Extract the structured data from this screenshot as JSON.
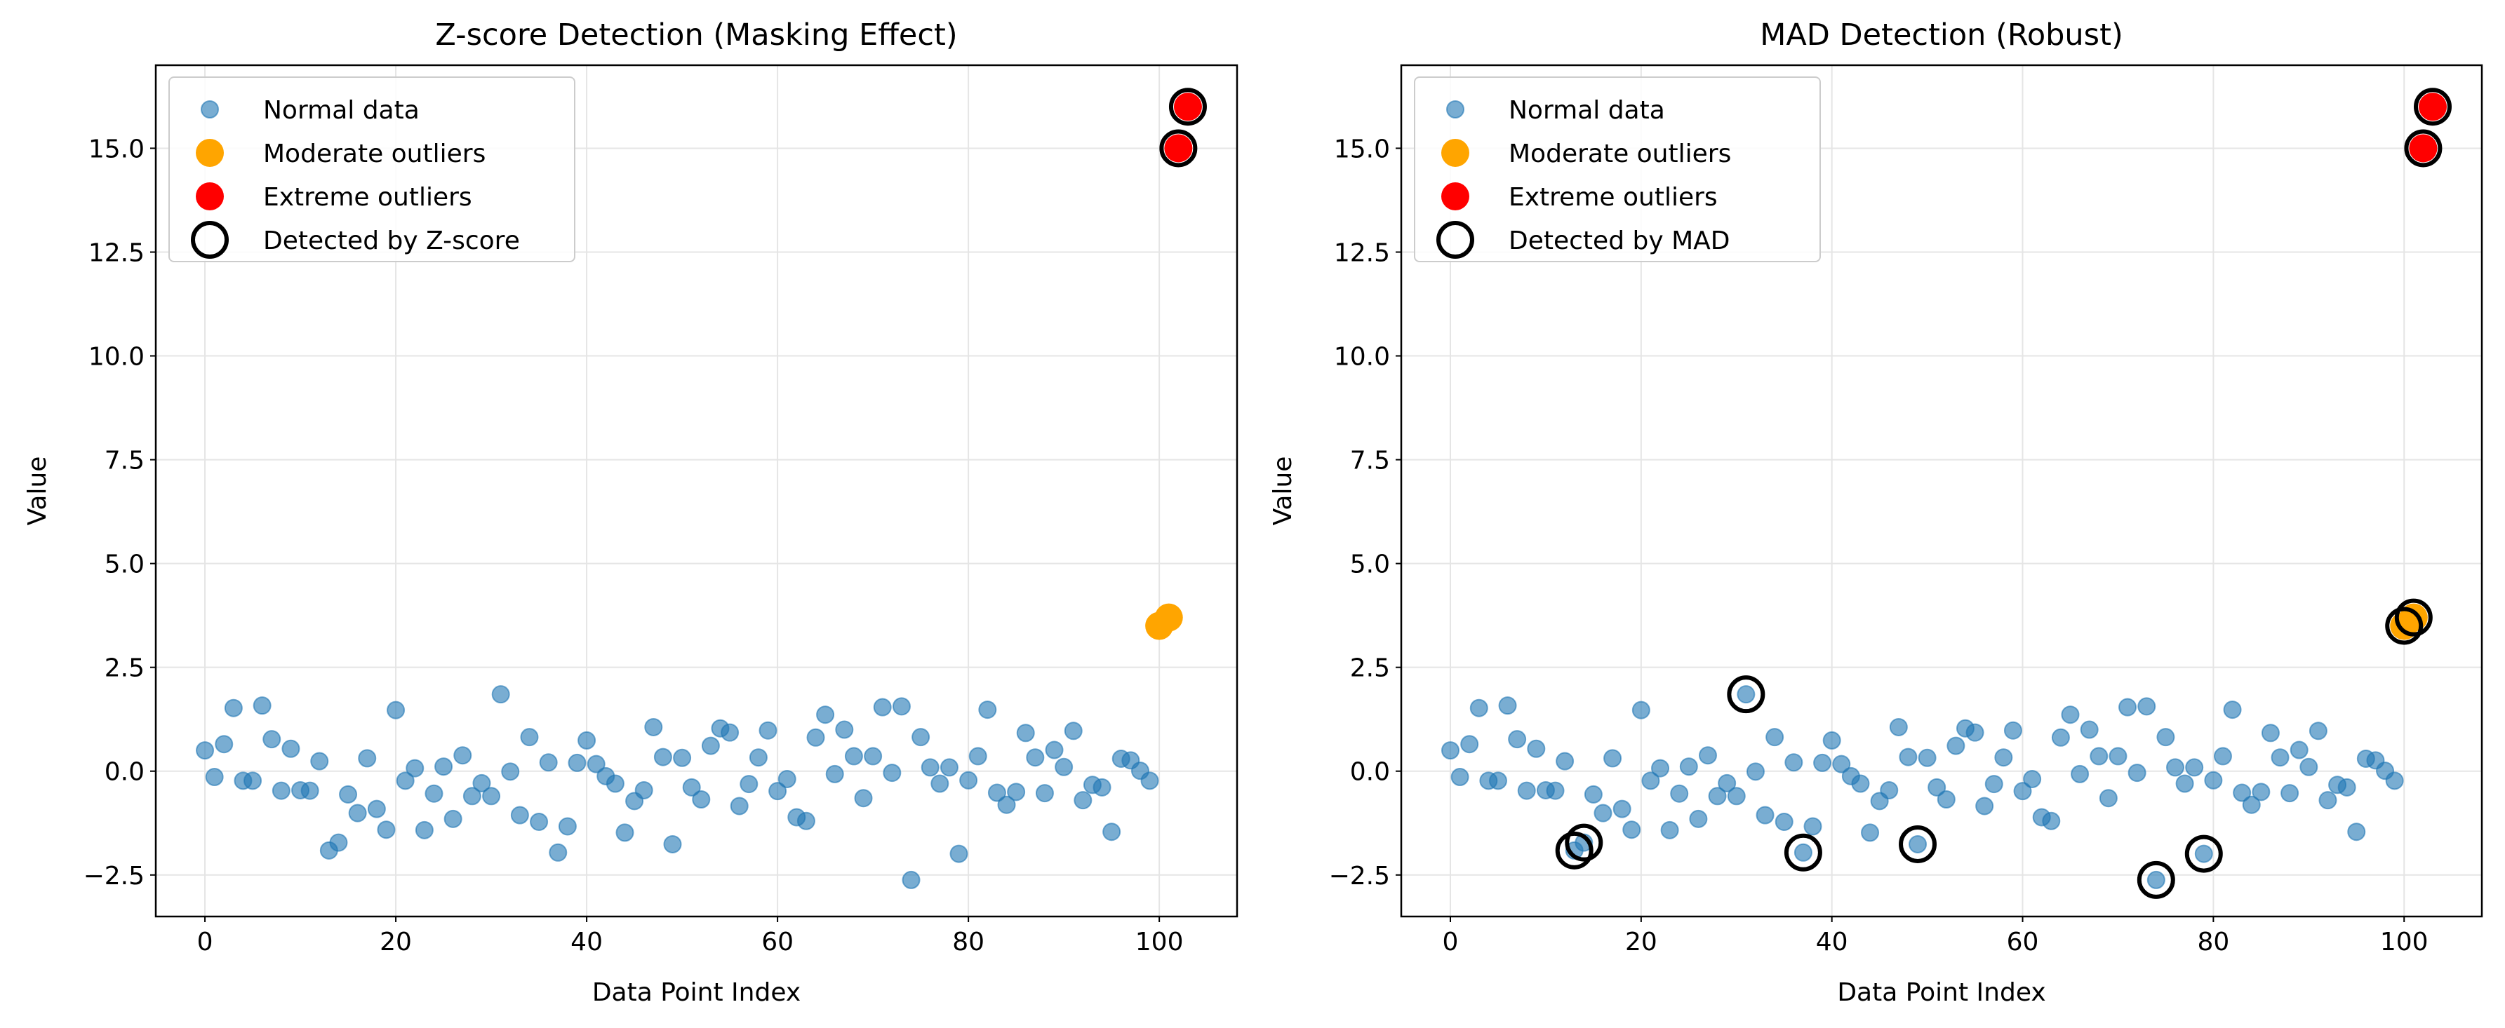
{
  "colors": {
    "normal": "#1f77b4",
    "moderate": "#ffa500",
    "extreme": "#ff0000",
    "detected_edge": "#000000",
    "grid": "#e5e5e5"
  },
  "chart_data": [
    {
      "type": "scatter",
      "title": "Z-score Detection (Masking Effect)",
      "xlabel": "Data Point Index",
      "ylabel": "Value",
      "xlim": [
        -5.15,
        108.15
      ],
      "ylim": [
        -3.5,
        17.0
      ],
      "xticks": [
        "0",
        "20",
        "40",
        "60",
        "80",
        "100"
      ],
      "yticks": [
        "−2.5",
        "0.0",
        "2.5",
        "5.0",
        "7.5",
        "10.0",
        "12.5",
        "15.0"
      ],
      "grid": true,
      "legend_position": "top-left",
      "series": [
        {
          "name": "Normal data",
          "x": [
            0,
            1,
            2,
            3,
            4,
            5,
            6,
            7,
            8,
            9,
            10,
            11,
            12,
            13,
            14,
            15,
            16,
            17,
            18,
            19,
            20,
            21,
            22,
            23,
            24,
            25,
            26,
            27,
            28,
            29,
            30,
            31,
            32,
            33,
            34,
            35,
            36,
            37,
            38,
            39,
            40,
            41,
            42,
            43,
            44,
            45,
            46,
            47,
            48,
            49,
            50,
            51,
            52,
            53,
            54,
            55,
            56,
            57,
            58,
            59,
            60,
            61,
            62,
            63,
            64,
            65,
            66,
            67,
            68,
            69,
            70,
            71,
            72,
            73,
            74,
            75,
            76,
            77,
            78,
            79,
            80,
            81,
            82,
            83,
            84,
            85,
            86,
            87,
            88,
            89,
            90,
            91,
            92,
            93,
            94,
            95,
            96,
            97,
            98,
            99
          ],
          "y": [
            0.5,
            -0.14,
            0.65,
            1.52,
            -0.23,
            -0.23,
            1.58,
            0.77,
            -0.47,
            0.54,
            -0.46,
            -0.47,
            0.24,
            -1.91,
            -1.72,
            -0.56,
            -1.01,
            0.31,
            -0.91,
            -1.41,
            1.47,
            -0.23,
            0.07,
            -1.42,
            -0.54,
            0.11,
            -1.15,
            0.38,
            -0.6,
            -0.29,
            -0.6,
            1.85,
            -0.01,
            -1.06,
            0.82,
            -1.22,
            0.21,
            -1.96,
            -1.33,
            0.2,
            0.74,
            0.17,
            -0.12,
            -0.3,
            -1.48,
            -0.72,
            -0.46,
            1.06,
            0.34,
            -1.76,
            0.32,
            -0.39,
            -0.68,
            0.61,
            1.03,
            0.93,
            -0.84,
            -0.31,
            0.33,
            0.98,
            -0.48,
            -0.19,
            -1.11,
            -1.2,
            0.81,
            1.36,
            -0.07,
            1.0,
            0.36,
            -0.65,
            0.36,
            1.54,
            -0.04,
            1.56,
            -2.62,
            0.82,
            0.09,
            -0.3,
            0.09,
            -1.99,
            -0.22,
            0.36,
            1.48,
            -0.52,
            -0.81,
            -0.5,
            0.92,
            0.33,
            -0.53,
            0.51,
            0.1,
            0.97,
            -0.7,
            -0.33,
            -0.39,
            -1.46,
            0.3,
            0.26,
            0.01,
            -0.23
          ]
        },
        {
          "name": "Moderate outliers",
          "x": [
            100,
            101
          ],
          "y": [
            3.5,
            3.7
          ]
        },
        {
          "name": "Extreme outliers",
          "x": [
            102,
            103
          ],
          "y": [
            15.0,
            16.0
          ]
        },
        {
          "name": "Detected by Z-score",
          "x": [
            102,
            103
          ],
          "y": [
            15.0,
            16.0
          ]
        }
      ]
    },
    {
      "type": "scatter",
      "title": "MAD Detection (Robust)",
      "xlabel": "Data Point Index",
      "ylabel": "Value",
      "xlim": [
        -5.15,
        108.15
      ],
      "ylim": [
        -3.5,
        17.0
      ],
      "xticks": [
        "0",
        "20",
        "40",
        "60",
        "80",
        "100"
      ],
      "yticks": [
        "−2.5",
        "0.0",
        "2.5",
        "5.0",
        "7.5",
        "10.0",
        "12.5",
        "15.0"
      ],
      "grid": true,
      "legend_position": "top-left",
      "series": [
        {
          "name": "Normal data",
          "x": [
            0,
            1,
            2,
            3,
            4,
            5,
            6,
            7,
            8,
            9,
            10,
            11,
            12,
            13,
            14,
            15,
            16,
            17,
            18,
            19,
            20,
            21,
            22,
            23,
            24,
            25,
            26,
            27,
            28,
            29,
            30,
            31,
            32,
            33,
            34,
            35,
            36,
            37,
            38,
            39,
            40,
            41,
            42,
            43,
            44,
            45,
            46,
            47,
            48,
            49,
            50,
            51,
            52,
            53,
            54,
            55,
            56,
            57,
            58,
            59,
            60,
            61,
            62,
            63,
            64,
            65,
            66,
            67,
            68,
            69,
            70,
            71,
            72,
            73,
            74,
            75,
            76,
            77,
            78,
            79,
            80,
            81,
            82,
            83,
            84,
            85,
            86,
            87,
            88,
            89,
            90,
            91,
            92,
            93,
            94,
            95,
            96,
            97,
            98,
            99
          ],
          "y": [
            0.5,
            -0.14,
            0.65,
            1.52,
            -0.23,
            -0.23,
            1.58,
            0.77,
            -0.47,
            0.54,
            -0.46,
            -0.47,
            0.24,
            -1.91,
            -1.72,
            -0.56,
            -1.01,
            0.31,
            -0.91,
            -1.41,
            1.47,
            -0.23,
            0.07,
            -1.42,
            -0.54,
            0.11,
            -1.15,
            0.38,
            -0.6,
            -0.29,
            -0.6,
            1.85,
            -0.01,
            -1.06,
            0.82,
            -1.22,
            0.21,
            -1.96,
            -1.33,
            0.2,
            0.74,
            0.17,
            -0.12,
            -0.3,
            -1.48,
            -0.72,
            -0.46,
            1.06,
            0.34,
            -1.76,
            0.32,
            -0.39,
            -0.68,
            0.61,
            1.03,
            0.93,
            -0.84,
            -0.31,
            0.33,
            0.98,
            -0.48,
            -0.19,
            -1.11,
            -1.2,
            0.81,
            1.36,
            -0.07,
            1.0,
            0.36,
            -0.65,
            0.36,
            1.54,
            -0.04,
            1.56,
            -2.62,
            0.82,
            0.09,
            -0.3,
            0.09,
            -1.99,
            -0.22,
            0.36,
            1.48,
            -0.52,
            -0.81,
            -0.5,
            0.92,
            0.33,
            -0.53,
            0.51,
            0.1,
            0.97,
            -0.7,
            -0.33,
            -0.39,
            -1.46,
            0.3,
            0.26,
            0.01,
            -0.23
          ]
        },
        {
          "name": "Moderate outliers",
          "x": [
            100,
            101
          ],
          "y": [
            3.5,
            3.7
          ]
        },
        {
          "name": "Extreme outliers",
          "x": [
            102,
            103
          ],
          "y": [
            15.0,
            16.0
          ]
        },
        {
          "name": "Detected by MAD",
          "x": [
            13,
            14,
            31,
            37,
            49,
            74,
            79,
            100,
            101,
            102,
            103
          ],
          "y": [
            -1.91,
            -1.72,
            1.85,
            -1.96,
            -1.76,
            -2.62,
            -1.99,
            3.5,
            3.7,
            15.0,
            16.0
          ]
        }
      ]
    }
  ]
}
